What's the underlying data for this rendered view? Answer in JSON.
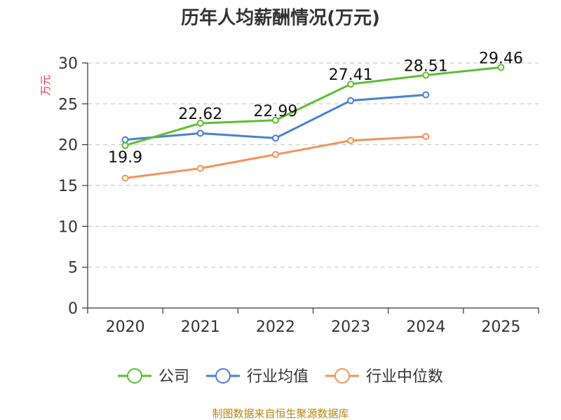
{
  "chart_data": {
    "type": "line",
    "title": "历年人均薪酬情况(万元)",
    "xlabel": "",
    "ylabel": "万元",
    "categories": [
      "2020",
      "2021",
      "2022",
      "2023",
      "2024",
      "2025"
    ],
    "ylim": [
      0,
      30
    ],
    "yticks": [
      0,
      5,
      10,
      15,
      20,
      25,
      30
    ],
    "grid": true,
    "legend_position": "bottom",
    "series": [
      {
        "name": "公司",
        "color": "#5dbe2f",
        "values": [
          19.9,
          22.62,
          22.99,
          27.41,
          28.51,
          29.46
        ],
        "labels": [
          "19.9",
          "22.62",
          "22.99",
          "27.41",
          "28.51",
          "29.46"
        ]
      },
      {
        "name": "行业均值",
        "color": "#4a7fd6",
        "values": [
          20.6,
          21.4,
          20.8,
          25.4,
          26.1,
          null
        ]
      },
      {
        "name": "行业中位数",
        "color": "#f5925a",
        "values": [
          15.9,
          17.1,
          18.8,
          20.5,
          21.0,
          null
        ]
      }
    ]
  },
  "source": "制图数据来自恒生聚源数据库"
}
